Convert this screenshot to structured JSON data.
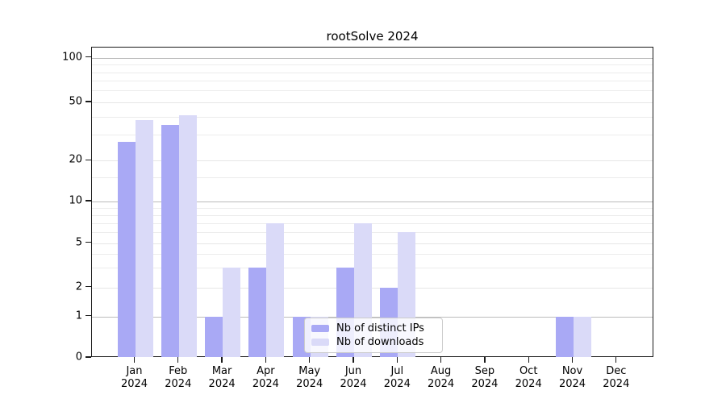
{
  "title": "rootSolve 2024",
  "chart_data": {
    "type": "bar",
    "title": "rootSolve 2024",
    "categories": [
      "Jan 2024",
      "Feb 2024",
      "Mar 2024",
      "Apr 2024",
      "May 2024",
      "Jun 2024",
      "Jul 2024",
      "Aug 2024",
      "Sep 2024",
      "Oct 2024",
      "Nov 2024",
      "Dec 2024"
    ],
    "series": [
      {
        "name": "Nb of distinct IPs",
        "color": "#a9a9f5",
        "values": [
          27,
          35,
          1,
          3,
          1,
          3,
          2,
          0,
          0,
          0,
          1,
          0
        ]
      },
      {
        "name": "Nb of downloads",
        "color": "#dadaf8",
        "values": [
          38,
          41,
          3,
          7,
          1,
          7,
          6,
          0,
          0,
          0,
          1,
          0
        ]
      }
    ],
    "y_axis": {
      "scale": "log-like (0 baseline then logarithmic)",
      "tick_values": [
        0,
        1,
        2,
        5,
        10,
        20,
        50,
        100
      ],
      "major_grid_values": [
        1,
        10,
        100
      ],
      "light_grid_values": [
        2,
        5,
        20,
        50
      ],
      "minor_grid_values": [
        3,
        4,
        6,
        7,
        8,
        9,
        15,
        30,
        40,
        60,
        70,
        80,
        90
      ],
      "ylim": [
        0,
        110
      ]
    },
    "x_axis": {
      "label_format": "month over year, two lines"
    },
    "grid": "horizontal only",
    "legend_position": "inside lower-center, semi-transparent box"
  },
  "legend": {
    "entries": [
      {
        "label": "Nb of distinct IPs",
        "color": "#a9a9f5"
      },
      {
        "label": "Nb of downloads",
        "color": "#dadaf8"
      }
    ]
  },
  "colors": {
    "ips_bar": "#a9a9f5",
    "downloads_bar": "#dadaf8",
    "spine": "#1a1a1a",
    "major_grid": "#bbbbbb",
    "minor_grid": "#ececec",
    "legend_border": "#cccccc"
  }
}
